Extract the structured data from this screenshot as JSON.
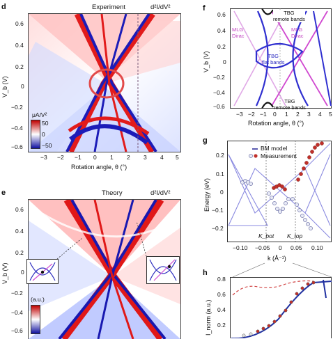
{
  "panels": {
    "d": {
      "letter": "d",
      "title": "Experiment",
      "quantity": "d²I/dV²",
      "ylabel": "V_b (V)",
      "xlabel": "Rotation angle, θ (°)",
      "yticks": [
        "0.6",
        "0.4",
        "0.2",
        "0",
        "−0.2",
        "−0.4",
        "−0.6"
      ],
      "xticks": [
        "−3",
        "−2",
        "−1",
        "0",
        "1",
        "2",
        "3",
        "4",
        "5"
      ],
      "colorbar": {
        "unit": "μA/V²",
        "max": "50",
        "mid": "0",
        "min": "−50"
      }
    },
    "e": {
      "letter": "e",
      "title": "Theory",
      "quantity": "d²I/dV²",
      "ylabel": "V_b (V)",
      "yticks": [
        "0.6",
        "0.4",
        "0.2",
        "0",
        "−0.2",
        "−0.4",
        "−0.6"
      ],
      "colorbar": {
        "unit": "(a.u.)"
      }
    },
    "f": {
      "letter": "f",
      "ylabel": "V_b (V)",
      "xlabel": "Rotation angle, θ (°)",
      "yticks": [
        "0.6",
        "0.4",
        "0.2",
        "0",
        "−0.2",
        "−0.4",
        "−0.6"
      ],
      "xticks": [
        "−3",
        "−2",
        "−1",
        "0",
        "1",
        "2",
        "3",
        "4",
        "5"
      ],
      "labels": {
        "remote_top": "TBG\nremote bands",
        "mlg_left": "MLG\nDirac",
        "mlg_right": "MLG\nDirac",
        "flat": "TBG\nflat bands",
        "remote_bottom": "TBG\nremote bands"
      },
      "colors": {
        "mlg": "#d048d0",
        "flat": "#3030d0",
        "remote": "#111111"
      }
    },
    "g": {
      "letter": "g",
      "ylabel": "Energy (eV)",
      "xlabel": "k (Å⁻¹)",
      "yticks": [
        "0.2",
        "0.1",
        "0",
        "−0.1",
        "−0.2"
      ],
      "xticks": [
        "−0.10",
        "−0.05",
        "0",
        "0.05",
        "0.10"
      ],
      "legend": {
        "model": "BM model",
        "measurement": "Measurement"
      },
      "k_labels": {
        "bot": "K_bot",
        "top": "K_top"
      },
      "colors": {
        "model": "#8a8ae0",
        "measurement_red": "#c0302a",
        "measurement_blue": "#9aa0d0"
      }
    },
    "h": {
      "letter": "h",
      "ylabel": "I_norm (a.u.)",
      "yticks": [
        "0.8",
        "0.6",
        "0.4",
        "0.2"
      ],
      "colors": {
        "fit": "#2030a0",
        "dashed": "#d04040"
      }
    }
  }
}
